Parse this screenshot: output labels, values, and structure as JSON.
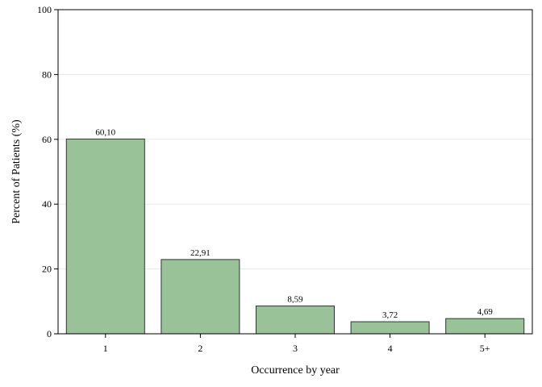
{
  "chart_data": {
    "type": "bar",
    "categories": [
      "1",
      "2",
      "3",
      "4",
      "5+"
    ],
    "values": [
      60.1,
      22.91,
      8.59,
      3.72,
      4.69
    ],
    "data_labels": [
      "60,10",
      "22,91",
      "8,59",
      "3,72",
      "4,69"
    ],
    "title": "",
    "xlabel": "Occurrence by year",
    "ylabel": "Percent of Patients (%)",
    "ylim": [
      0,
      100
    ],
    "yticks": [
      0,
      20,
      40,
      60,
      80,
      100
    ],
    "grid": true,
    "legend": "none",
    "bar_color": "#99c298",
    "bar_edge_color": "#333333",
    "grid_color": "#e8e8e8"
  }
}
